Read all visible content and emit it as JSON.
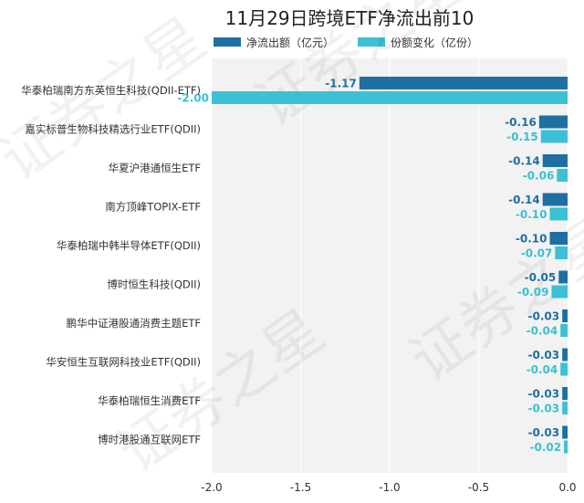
{
  "chart_data": {
    "type": "bar",
    "orientation": "horizontal",
    "title": "11月29日跨境ETF净流出前10",
    "categories": [
      "华泰柏瑞南方东英恒生科技(QDII-ETF)",
      "嘉实标普生物科技精选行业ETF(QDII)",
      "华夏沪港通恒生ETF",
      "南方顶峰TOPIX-ETF",
      "华泰柏瑞中韩半导体ETF(QDII)",
      "博时恒生科技(QDII)",
      "鹏华中证港股通消费主题ETF",
      "华安恒生互联网科技业ETF(QDII)",
      "华泰柏瑞恒生消费ETF",
      "博时港股通互联网ETF"
    ],
    "series": [
      {
        "name": "净流出额（亿元）",
        "color": "#1f6fa3",
        "values": [
          -1.17,
          -0.16,
          -0.14,
          -0.14,
          -0.1,
          -0.05,
          -0.03,
          -0.03,
          -0.03,
          -0.03
        ],
        "labels": [
          "-1.17",
          "-0.16",
          "-0.14",
          "-0.14",
          "-0.10",
          "-0.05",
          "-0.03",
          "-0.03",
          "-0.03",
          "-0.03"
        ]
      },
      {
        "name": "份额变化（亿份）",
        "color": "#3cc0d3",
        "values": [
          -2.0,
          -0.15,
          -0.06,
          -0.1,
          -0.07,
          -0.09,
          -0.04,
          -0.04,
          -0.03,
          -0.02
        ],
        "labels": [
          "-2.00",
          "-0.15",
          "-0.06",
          "-0.10",
          "-0.07",
          "-0.09",
          "-0.04",
          "-0.04",
          "-0.03",
          "-0.02"
        ]
      }
    ],
    "xlim": [
      -2.0,
      0.0
    ],
    "xticks": [
      -2.0,
      -1.5,
      -1.0,
      -0.5,
      0.0
    ],
    "xtick_labels": [
      "-2.0",
      "-1.5",
      "-1.0",
      "-0.5",
      "0.0"
    ],
    "legend_position": "top",
    "grid": "vertical",
    "plot_background": "#f2f2f2",
    "watermark": "证券之星"
  }
}
